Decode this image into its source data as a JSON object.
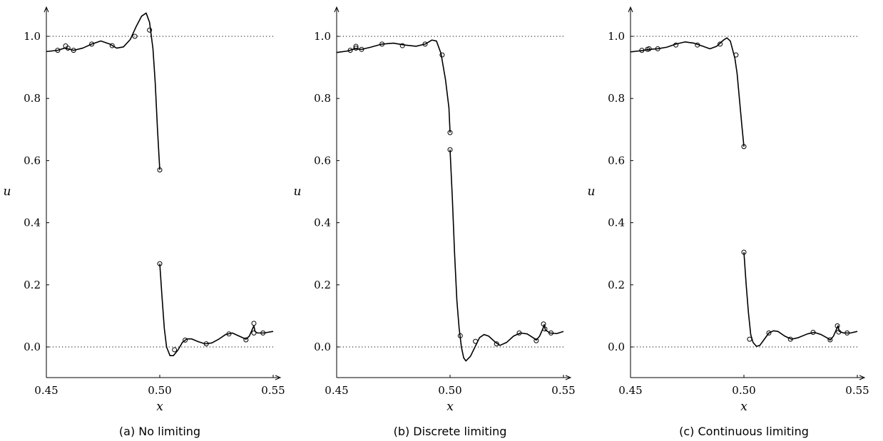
{
  "chart_data": [
    {
      "type": "line",
      "caption": "(a) No limiting",
      "xlabel": "x",
      "ylabel": "u",
      "xlim": [
        0.45,
        0.55
      ],
      "ylim": [
        -0.1,
        1.1
      ],
      "xticks": [
        "0.45",
        "0.50",
        "0.55"
      ],
      "yticks": [
        "0.0",
        "0.2",
        "0.4",
        "0.6",
        "0.8",
        "1.0"
      ],
      "reference_lines": [
        1.0,
        0.0
      ],
      "curves": [
        [
          [
            0.45,
            0.951
          ],
          [
            0.455,
            0.955
          ],
          [
            0.458,
            0.962
          ],
          [
            0.46,
            0.959
          ],
          [
            0.462,
            0.955
          ],
          [
            0.466,
            0.962
          ],
          [
            0.47,
            0.975
          ],
          [
            0.474,
            0.985
          ],
          [
            0.478,
            0.975
          ],
          [
            0.481,
            0.962
          ],
          [
            0.484,
            0.966
          ],
          [
            0.487,
            0.99
          ],
          [
            0.4895,
            1.03
          ],
          [
            0.492,
            1.065
          ],
          [
            0.494,
            1.075
          ],
          [
            0.4955,
            1.045
          ],
          [
            0.497,
            0.96
          ],
          [
            0.498,
            0.85
          ],
          [
            0.499,
            0.7
          ],
          [
            0.5,
            0.57
          ]
        ],
        [
          [
            0.5,
            0.268
          ],
          [
            0.501,
            0.16
          ],
          [
            0.502,
            0.06
          ],
          [
            0.503,
            0.0
          ],
          [
            0.5045,
            -0.028
          ],
          [
            0.506,
            -0.028
          ],
          [
            0.508,
            -0.01
          ],
          [
            0.51,
            0.015
          ],
          [
            0.512,
            0.026
          ],
          [
            0.514,
            0.026
          ],
          [
            0.517,
            0.017
          ],
          [
            0.52,
            0.01
          ],
          [
            0.523,
            0.013
          ],
          [
            0.526,
            0.025
          ],
          [
            0.529,
            0.04
          ],
          [
            0.532,
            0.045
          ],
          [
            0.535,
            0.035
          ],
          [
            0.538,
            0.025
          ],
          [
            0.5395,
            0.035
          ],
          [
            0.541,
            0.06
          ],
          [
            0.5415,
            0.068
          ],
          [
            0.542,
            0.05
          ],
          [
            0.543,
            0.045
          ],
          [
            0.546,
            0.045
          ],
          [
            0.55,
            0.05
          ]
        ]
      ],
      "markers": [
        [
          0.455,
          0.955
        ],
        [
          0.4595,
          0.962
        ],
        [
          0.4585,
          0.969
        ],
        [
          0.462,
          0.955
        ],
        [
          0.47,
          0.975
        ],
        [
          0.479,
          0.97
        ],
        [
          0.489,
          1.0
        ],
        [
          0.4955,
          1.02
        ],
        [
          0.5,
          0.57
        ],
        [
          0.5,
          0.268
        ],
        [
          0.5065,
          -0.009
        ],
        [
          0.5112,
          0.022
        ],
        [
          0.5205,
          0.01
        ],
        [
          0.5305,
          0.042
        ],
        [
          0.538,
          0.023
        ],
        [
          0.5415,
          0.076
        ],
        [
          0.5415,
          0.045
        ],
        [
          0.5455,
          0.045
        ]
      ]
    },
    {
      "type": "line",
      "caption": "(b) Discrete limiting",
      "xlabel": "x",
      "ylabel": "u",
      "xlim": [
        0.45,
        0.55
      ],
      "ylim": [
        -0.1,
        1.1
      ],
      "xticks": [
        "0.45",
        "0.50",
        "0.55"
      ],
      "yticks": [
        "0.0",
        "0.2",
        "0.4",
        "0.6",
        "0.8",
        "1.0"
      ],
      "reference_lines": [
        1.0,
        0.0
      ],
      "curves": [
        [
          [
            0.45,
            0.948
          ],
          [
            0.455,
            0.953
          ],
          [
            0.458,
            0.96
          ],
          [
            0.461,
            0.958
          ],
          [
            0.465,
            0.965
          ],
          [
            0.47,
            0.975
          ],
          [
            0.475,
            0.978
          ],
          [
            0.48,
            0.972
          ],
          [
            0.485,
            0.968
          ],
          [
            0.489,
            0.975
          ],
          [
            0.492,
            0.988
          ],
          [
            0.494,
            0.985
          ],
          [
            0.496,
            0.945
          ],
          [
            0.498,
            0.86
          ],
          [
            0.4995,
            0.77
          ],
          [
            0.5,
            0.69
          ]
        ],
        [
          [
            0.5,
            0.635
          ],
          [
            0.501,
            0.48
          ],
          [
            0.502,
            0.3
          ],
          [
            0.503,
            0.15
          ],
          [
            0.504,
            0.06
          ],
          [
            0.505,
            0.0
          ],
          [
            0.506,
            -0.035
          ],
          [
            0.507,
            -0.045
          ],
          [
            0.509,
            -0.03
          ],
          [
            0.511,
            0.0
          ],
          [
            0.513,
            0.03
          ],
          [
            0.515,
            0.04
          ],
          [
            0.517,
            0.035
          ],
          [
            0.52,
            0.015
          ],
          [
            0.522,
            0.005
          ],
          [
            0.525,
            0.015
          ],
          [
            0.528,
            0.035
          ],
          [
            0.531,
            0.045
          ],
          [
            0.534,
            0.042
          ],
          [
            0.537,
            0.028
          ],
          [
            0.538,
            0.022
          ],
          [
            0.5395,
            0.035
          ],
          [
            0.541,
            0.06
          ],
          [
            0.5415,
            0.072
          ],
          [
            0.542,
            0.055
          ],
          [
            0.544,
            0.045
          ],
          [
            0.547,
            0.043
          ],
          [
            0.55,
            0.05
          ]
        ]
      ],
      "markers": [
        [
          0.456,
          0.955
        ],
        [
          0.4585,
          0.962
        ],
        [
          0.4585,
          0.968
        ],
        [
          0.461,
          0.958
        ],
        [
          0.47,
          0.975
        ],
        [
          0.479,
          0.97
        ],
        [
          0.489,
          0.975
        ],
        [
          0.4965,
          0.94
        ],
        [
          0.5,
          0.69
        ],
        [
          0.5,
          0.635
        ],
        [
          0.5045,
          0.036
        ],
        [
          0.5112,
          0.018
        ],
        [
          0.5205,
          0.01
        ],
        [
          0.5305,
          0.045
        ],
        [
          0.538,
          0.02
        ],
        [
          0.5412,
          0.074
        ],
        [
          0.5418,
          0.058
        ],
        [
          0.5445,
          0.045
        ]
      ]
    },
    {
      "type": "line",
      "caption": "(c) Continuous limiting",
      "xlabel": "x",
      "ylabel": "u",
      "xlim": [
        0.45,
        0.55
      ],
      "ylim": [
        -0.1,
        1.1
      ],
      "xticks": [
        "0.45",
        "0.50",
        "0.55"
      ],
      "yticks": [
        "0.0",
        "0.2",
        "0.4",
        "0.6",
        "0.8",
        "1.0"
      ],
      "reference_lines": [
        1.0,
        0.0
      ],
      "curves": [
        [
          [
            0.45,
            0.95
          ],
          [
            0.455,
            0.954
          ],
          [
            0.458,
            0.958
          ],
          [
            0.462,
            0.96
          ],
          [
            0.466,
            0.965
          ],
          [
            0.47,
            0.975
          ],
          [
            0.474,
            0.982
          ],
          [
            0.478,
            0.978
          ],
          [
            0.482,
            0.968
          ],
          [
            0.485,
            0.96
          ],
          [
            0.488,
            0.968
          ],
          [
            0.491,
            0.988
          ],
          [
            0.4925,
            0.995
          ],
          [
            0.494,
            0.985
          ],
          [
            0.496,
            0.93
          ],
          [
            0.497,
            0.88
          ],
          [
            0.498,
            0.8
          ],
          [
            0.499,
            0.72
          ],
          [
            0.5,
            0.645
          ]
        ],
        [
          [
            0.5,
            0.305
          ],
          [
            0.501,
            0.2
          ],
          [
            0.502,
            0.11
          ],
          [
            0.503,
            0.04
          ],
          [
            0.504,
            0.015
          ],
          [
            0.5055,
            0.002
          ],
          [
            0.507,
            0.005
          ],
          [
            0.509,
            0.025
          ],
          [
            0.511,
            0.045
          ],
          [
            0.513,
            0.052
          ],
          [
            0.515,
            0.05
          ],
          [
            0.518,
            0.035
          ],
          [
            0.521,
            0.025
          ],
          [
            0.524,
            0.03
          ],
          [
            0.528,
            0.042
          ],
          [
            0.531,
            0.047
          ],
          [
            0.534,
            0.04
          ],
          [
            0.537,
            0.028
          ],
          [
            0.538,
            0.022
          ],
          [
            0.5395,
            0.035
          ],
          [
            0.541,
            0.06
          ],
          [
            0.5415,
            0.068
          ],
          [
            0.542,
            0.05
          ],
          [
            0.544,
            0.045
          ],
          [
            0.547,
            0.045
          ],
          [
            0.55,
            0.05
          ]
        ]
      ],
      "markers": [
        [
          0.455,
          0.955
        ],
        [
          0.4575,
          0.958
        ],
        [
          0.4582,
          0.96
        ],
        [
          0.462,
          0.96
        ],
        [
          0.47,
          0.972
        ],
        [
          0.4795,
          0.972
        ],
        [
          0.4895,
          0.975
        ],
        [
          0.4965,
          0.94
        ],
        [
          0.5,
          0.645
        ],
        [
          0.5,
          0.305
        ],
        [
          0.5025,
          0.025
        ],
        [
          0.511,
          0.045
        ],
        [
          0.5205,
          0.025
        ],
        [
          0.5305,
          0.047
        ],
        [
          0.538,
          0.023
        ],
        [
          0.5412,
          0.068
        ],
        [
          0.5418,
          0.048
        ],
        [
          0.5455,
          0.045
        ]
      ]
    }
  ]
}
